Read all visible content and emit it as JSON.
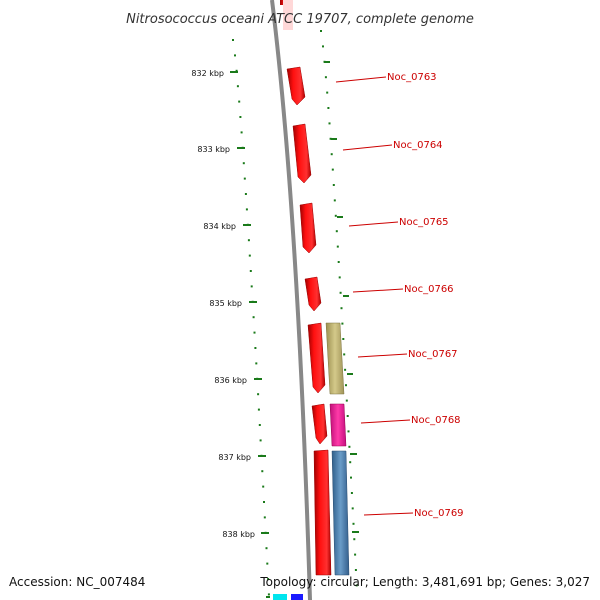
{
  "title": "Nitrosococcus oceani ATCC 19707, complete genome",
  "footer": {
    "accession": "Accession: NC_007484",
    "topology": "Topology: circular; Length: 3,481,691 bp; Genes: 3,027"
  },
  "ticks": [
    "832 kbp",
    "833 kbp",
    "834 kbp",
    "835 kbp",
    "836 kbp",
    "837 kbp",
    "838 kbp"
  ],
  "genes": [
    {
      "name": "Noc_0763"
    },
    {
      "name": "Noc_0764"
    },
    {
      "name": "Noc_0765"
    },
    {
      "name": "Noc_0766"
    },
    {
      "name": "Noc_0767"
    },
    {
      "name": "Noc_0768"
    },
    {
      "name": "Noc_0769"
    }
  ],
  "colors": {
    "backbone": "#888888",
    "forward_gene": "#ff0000",
    "tick": "#1a7a1a",
    "label": "#cc0000",
    "olive_feature": "#c8bc78",
    "magenta_feature": "#ff1493",
    "steelblue_feature": "#4682b4"
  }
}
